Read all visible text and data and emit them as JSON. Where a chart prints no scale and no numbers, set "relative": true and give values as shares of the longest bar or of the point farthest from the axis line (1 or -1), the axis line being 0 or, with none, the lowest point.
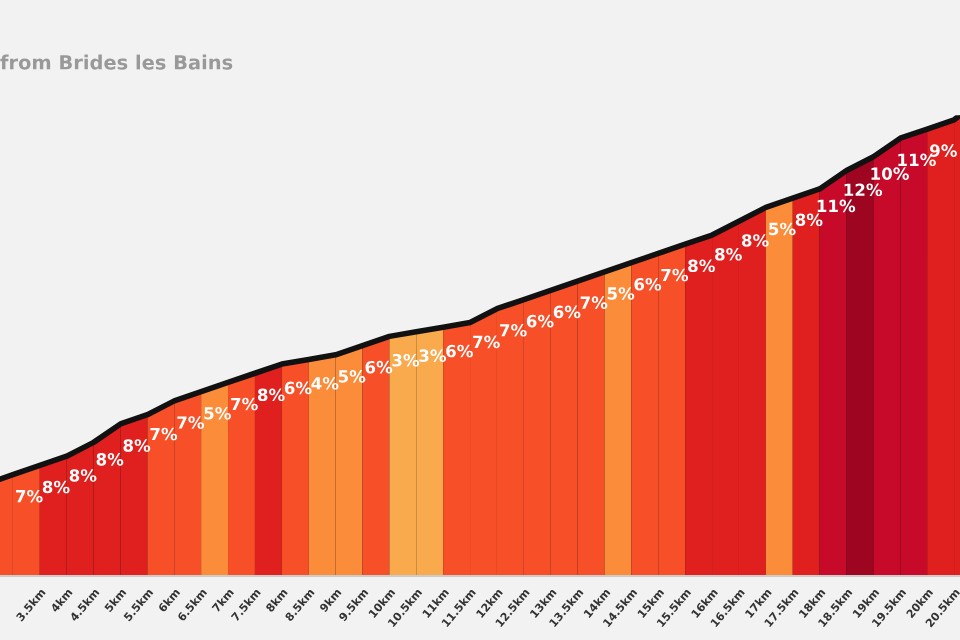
{
  "chart_data": {
    "type": "area",
    "title": "from Brides les Bains",
    "relative": true,
    "x": [
      2.76,
      3,
      3.5,
      4,
      4.5,
      5,
      5.5,
      6,
      6.5,
      7,
      7.5,
      8,
      8.5,
      9,
      9.5,
      10,
      10.5,
      11,
      11.5,
      12,
      12.5,
      13,
      13.5,
      14,
      14.5,
      15,
      15.5,
      16,
      16.5,
      17,
      17.5,
      18,
      18.5,
      19,
      19.5,
      20,
      20.5,
      20.61
    ],
    "series": [
      {
        "color": "#111111",
        "values": [
          0.21,
          0.22,
          0.24,
          0.26,
          0.29,
          0.33,
          0.35,
          0.38,
          0.4,
          0.42,
          0.44,
          0.46,
          0.47,
          0.48,
          0.5,
          0.52,
          0.53,
          0.54,
          0.55,
          0.58,
          0.6,
          0.62,
          0.64,
          0.66,
          0.68,
          0.7,
          0.72,
          0.74,
          0.77,
          0.8,
          0.82,
          0.84,
          0.88,
          0.91,
          0.95,
          0.97,
          0.99,
          1.0
        ]
      }
    ],
    "xlim": [
      2.76,
      20.61
    ],
    "xticks": [
      {
        "value": 3.5,
        "label": "3.5km"
      },
      {
        "value": 4,
        "label": "4km"
      },
      {
        "value": 4.5,
        "label": "4.5km"
      },
      {
        "value": 5,
        "label": "5km"
      },
      {
        "value": 5.5,
        "label": "5.5km"
      },
      {
        "value": 6,
        "label": "6km"
      },
      {
        "value": 6.5,
        "label": "6.5km"
      },
      {
        "value": 7,
        "label": "7km"
      },
      {
        "value": 7.5,
        "label": "7.5km"
      },
      {
        "value": 8,
        "label": "8km"
      },
      {
        "value": 8.5,
        "label": "8.5km"
      },
      {
        "value": 9,
        "label": "9km"
      },
      {
        "value": 9.5,
        "label": "9.5km"
      },
      {
        "value": 10,
        "label": "10km"
      },
      {
        "value": 10.5,
        "label": "10.5km"
      },
      {
        "value": 11,
        "label": "11km"
      },
      {
        "value": 11.5,
        "label": "11.5km"
      },
      {
        "value": 12,
        "label": "12km"
      },
      {
        "value": 12.5,
        "label": "12.5km"
      },
      {
        "value": 13,
        "label": "13km"
      },
      {
        "value": 13.5,
        "label": "13.5km"
      },
      {
        "value": 14,
        "label": "14km"
      },
      {
        "value": 14.5,
        "label": "14.5km"
      },
      {
        "value": 15,
        "label": "15km"
      },
      {
        "value": 15.5,
        "label": "15.5km"
      },
      {
        "value": 16,
        "label": "16km"
      },
      {
        "value": 16.5,
        "label": "16.5km"
      },
      {
        "value": 17,
        "label": "17km"
      },
      {
        "value": 17.5,
        "label": "17.5km"
      },
      {
        "value": 18,
        "label": "18km"
      },
      {
        "value": 18.5,
        "label": "18.5km"
      },
      {
        "value": 19,
        "label": "19km"
      },
      {
        "value": 19.5,
        "label": "19.5km"
      },
      {
        "value": 20,
        "label": "20km"
      },
      {
        "value": 20.5,
        "label": "20.5km"
      }
    ],
    "bands": [
      {
        "axis": "x",
        "from": 2.76,
        "to": 3,
        "label": null,
        "color": "#f74f28"
      },
      {
        "axis": "x",
        "from": 3,
        "to": 3.5,
        "label": "7%",
        "color": "#f74f28"
      },
      {
        "axis": "x",
        "from": 3.5,
        "to": 4,
        "label": "8%",
        "color": "#e0201e"
      },
      {
        "axis": "x",
        "from": 4,
        "to": 4.5,
        "label": "8%",
        "color": "#e0201e"
      },
      {
        "axis": "x",
        "from": 4.5,
        "to": 5,
        "label": "8%",
        "color": "#e0201e"
      },
      {
        "axis": "x",
        "from": 5,
        "to": 5.5,
        "label": "8%",
        "color": "#e0201e"
      },
      {
        "axis": "x",
        "from": 5.5,
        "to": 6,
        "label": "7%",
        "color": "#f74f28"
      },
      {
        "axis": "x",
        "from": 6,
        "to": 6.5,
        "label": "7%",
        "color": "#f74f28"
      },
      {
        "axis": "x",
        "from": 6.5,
        "to": 7,
        "label": "5%",
        "color": "#fb8c3a"
      },
      {
        "axis": "x",
        "from": 7,
        "to": 7.5,
        "label": "7%",
        "color": "#f74f28"
      },
      {
        "axis": "x",
        "from": 7.5,
        "to": 8,
        "label": "8%",
        "color": "#e0201e"
      },
      {
        "axis": "x",
        "from": 8,
        "to": 8.5,
        "label": "6%",
        "color": "#f74f28"
      },
      {
        "axis": "x",
        "from": 8.5,
        "to": 9,
        "label": "4%",
        "color": "#fb8c3a"
      },
      {
        "axis": "x",
        "from": 9,
        "to": 9.5,
        "label": "5%",
        "color": "#fb8c3a"
      },
      {
        "axis": "x",
        "from": 9.5,
        "to": 10,
        "label": "6%",
        "color": "#f74f28"
      },
      {
        "axis": "x",
        "from": 10,
        "to": 10.5,
        "label": "3%",
        "color": "#f9aa4c"
      },
      {
        "axis": "x",
        "from": 10.5,
        "to": 11,
        "label": "3%",
        "color": "#f9aa4c"
      },
      {
        "axis": "x",
        "from": 11,
        "to": 11.5,
        "label": "6%",
        "color": "#f74f28"
      },
      {
        "axis": "x",
        "from": 11.5,
        "to": 12,
        "label": "7%",
        "color": "#f74f28"
      },
      {
        "axis": "x",
        "from": 12,
        "to": 12.5,
        "label": "7%",
        "color": "#f74f28"
      },
      {
        "axis": "x",
        "from": 12.5,
        "to": 13,
        "label": "6%",
        "color": "#f74f28"
      },
      {
        "axis": "x",
        "from": 13,
        "to": 13.5,
        "label": "6%",
        "color": "#f74f28"
      },
      {
        "axis": "x",
        "from": 13.5,
        "to": 14,
        "label": "7%",
        "color": "#f74f28"
      },
      {
        "axis": "x",
        "from": 14,
        "to": 14.5,
        "label": "5%",
        "color": "#fb8c3a"
      },
      {
        "axis": "x",
        "from": 14.5,
        "to": 15,
        "label": "6%",
        "color": "#f74f28"
      },
      {
        "axis": "x",
        "from": 15,
        "to": 15.5,
        "label": "7%",
        "color": "#f74f28"
      },
      {
        "axis": "x",
        "from": 15.5,
        "to": 16,
        "label": "8%",
        "color": "#e0201e"
      },
      {
        "axis": "x",
        "from": 16,
        "to": 16.5,
        "label": "8%",
        "color": "#e0201e"
      },
      {
        "axis": "x",
        "from": 16.5,
        "to": 17,
        "label": "8%",
        "color": "#e0201e"
      },
      {
        "axis": "x",
        "from": 17,
        "to": 17.5,
        "label": "5%",
        "color": "#fb8c3a"
      },
      {
        "axis": "x",
        "from": 17.5,
        "to": 18,
        "label": "8%",
        "color": "#e0201e"
      },
      {
        "axis": "x",
        "from": 18,
        "to": 18.5,
        "label": "11%",
        "color": "#c70a2a"
      },
      {
        "axis": "x",
        "from": 18.5,
        "to": 19,
        "label": "12%",
        "color": "#9e0520"
      },
      {
        "axis": "x",
        "from": 19,
        "to": 19.5,
        "label": "10%",
        "color": "#c70a2a"
      },
      {
        "axis": "x",
        "from": 19.5,
        "to": 20,
        "label": "11%",
        "color": "#c70a2a"
      },
      {
        "axis": "x",
        "from": 20,
        "to": 20.5,
        "label": "9%",
        "color": "#e0201e"
      },
      {
        "axis": "x",
        "from": 20.5,
        "to": 20.61,
        "label": null,
        "color": "#e0201e"
      }
    ],
    "grid": false,
    "legend": false
  }
}
